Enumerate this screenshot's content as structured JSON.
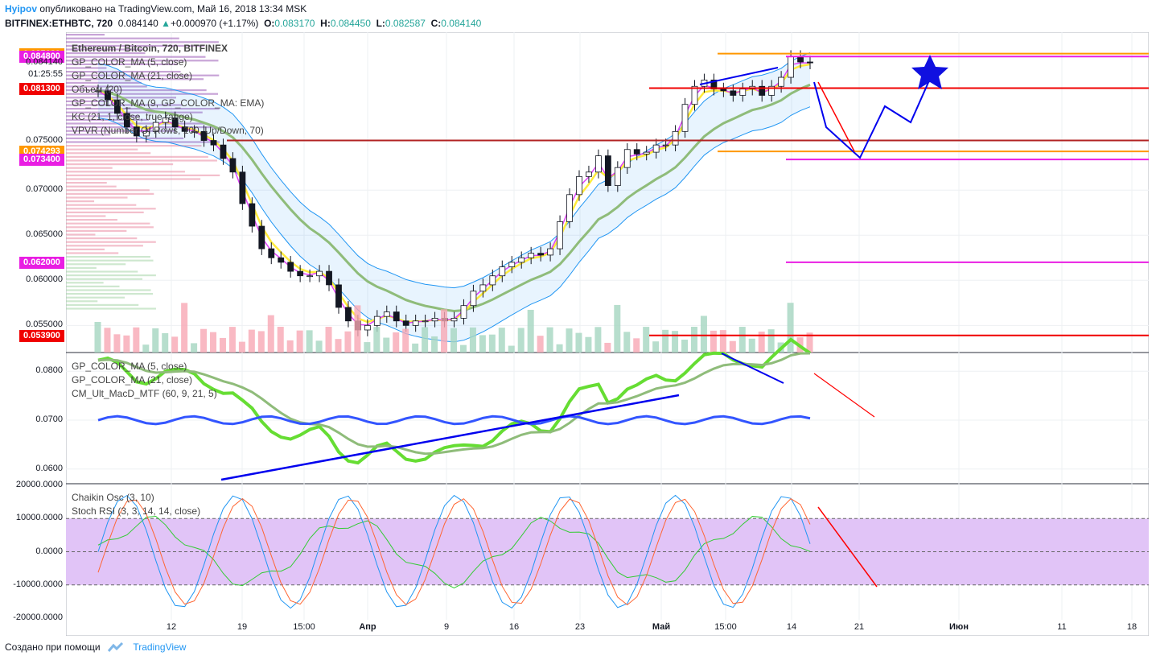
{
  "header": {
    "author": "Hyipov",
    "published_text": "опубликовано на TradingView.com, Май 16, 2018 13:34 MSK",
    "symbol": "BITFINEX:ETHBTC, 720",
    "last": "0.084140",
    "change": "+0.000970 (+1.17%)",
    "o_label": "O:",
    "o": "0.083170",
    "h_label": "H:",
    "h": "0.084450",
    "l_label": "L:",
    "l": "0.082587",
    "c_label": "C:",
    "c": "0.084140"
  },
  "main_pane": {
    "legend": [
      "Ethereum / Bitcoin, 720, BITFINEX",
      "GP_COLOR_MA (5, close)",
      "GP_COLOR_MA (21, close)",
      "Объем (20)",
      "GP_COLOR_MA (9, GP_COLOR_MA: EMA)",
      "KC (21, 1, close, true range)",
      "VPVR (Number Of Rows, 100, Up/Down, 70)"
    ],
    "price_ticks": [
      "0.070000",
      "0.065000",
      "0.060000",
      "0.055000"
    ],
    "price_badges": [
      {
        "text": "0.085130",
        "color": "#ff9800"
      },
      {
        "text": "0.084800",
        "color": "#e91ee3"
      },
      {
        "text": "0.081300",
        "color": "#f00000"
      },
      {
        "text": "0.074293",
        "color": "#ff9800"
      },
      {
        "text": "0.073400",
        "color": "#e91ee3"
      },
      {
        "text": "0.062000",
        "color": "#e91ee3"
      },
      {
        "text": "0.053900",
        "color": "#f00000"
      }
    ],
    "plain_labels": [
      "0.084140",
      "01:25:55",
      "0.075000"
    ]
  },
  "macd_pane": {
    "legend": [
      "GP_COLOR_MA (5, close)",
      "GP_COLOR_MA (21, close)",
      "CM_Ult_MacD_MTF (60, 9, 21, 5)"
    ],
    "ticks": [
      "0.0800",
      "0.0700",
      "0.0600"
    ]
  },
  "osc_pane": {
    "legend": [
      "Chaikin Osc (3, 10)",
      "Stoch RSI (3, 3, 14, 14, close)"
    ],
    "ticks": [
      "20000.0000",
      "10000.0000",
      "0.0000",
      "-10000.0000",
      "-20000.0000"
    ]
  },
  "time_axis": [
    "12",
    "19",
    "15:00",
    "Апр",
    "9",
    "16",
    "23",
    "Май",
    "15:00",
    "14",
    "21",
    "Июн",
    "11",
    "18"
  ],
  "footer": {
    "created_with": "Создано при помощи",
    "brand": "TradingView"
  },
  "colors": {
    "up": "#a5d6c1",
    "down": "#f7a8b4",
    "kc_line": "#2196f3",
    "ma21": "#8fbc7a",
    "ma5": "#ffeb3b",
    "annotation": "#0000ee",
    "arrow": "#ff0000"
  },
  "chart_data": [
    {
      "type": "candlestick",
      "title": "Ethereum / Bitcoin, 720, BITFINEX",
      "ylim": [
        0.052,
        0.0875
      ],
      "x_ticks": [
        "12",
        "19",
        "15:00",
        "Апр",
        "9",
        "16",
        "23",
        "Май",
        "15:00",
        "14",
        "21",
        "Июн",
        "11",
        "18"
      ],
      "close_path": [
        0.081,
        0.08,
        0.0785,
        0.077,
        0.076,
        0.0765,
        0.0775,
        0.078,
        0.077,
        0.0765,
        0.0765,
        0.0755,
        0.075,
        0.0735,
        0.072,
        0.0685,
        0.066,
        0.0635,
        0.0625,
        0.062,
        0.061,
        0.0605,
        0.0605,
        0.061,
        0.0595,
        0.057,
        0.0555,
        0.0545,
        0.055,
        0.056,
        0.0565,
        0.0555,
        0.055,
        0.0555,
        0.0555,
        0.0558,
        0.0555,
        0.0558,
        0.0572,
        0.0588,
        0.0595,
        0.0605,
        0.0615,
        0.062,
        0.0625,
        0.063,
        0.0628,
        0.0635,
        0.0665,
        0.0695,
        0.0715,
        0.072,
        0.0738,
        0.0705,
        0.0725,
        0.0745,
        0.074,
        0.0742,
        0.075,
        0.075,
        0.0765,
        0.0795,
        0.0815,
        0.0822,
        0.0812,
        0.081,
        0.0805,
        0.0812,
        0.0815,
        0.0805,
        0.0815,
        0.0825,
        0.0848,
        0.0842,
        0.0841
      ],
      "horizontal_levels": [
        0.08513,
        0.0848,
        0.0813,
        0.074293,
        0.0734,
        0.062,
        0.0539
      ],
      "series": [
        {
          "name": "GP_COLOR_MA (5, close)"
        },
        {
          "name": "GP_COLOR_MA (21, close)"
        },
        {
          "name": "KC (21, 1, close, true range)"
        }
      ]
    },
    {
      "type": "line",
      "legend": [
        "GP_COLOR_MA (5, close)",
        "GP_COLOR_MA (21, close)",
        "CM_Ult_MacD_MTF (60, 9, 21, 5)"
      ],
      "ylim": [
        0.0575,
        0.0835
      ],
      "y_ticks": [
        0.08,
        0.07,
        0.06
      ]
    },
    {
      "type": "line",
      "legend": [
        "Chaikin Osc (3, 10)",
        "Stoch RSI (3, 3, 14, 14, close)"
      ],
      "ylim": [
        -20000,
        20000
      ],
      "y_ticks": [
        20000,
        10000,
        0,
        -10000,
        -20000
      ],
      "band": [
        -10000,
        10000
      ]
    }
  ]
}
